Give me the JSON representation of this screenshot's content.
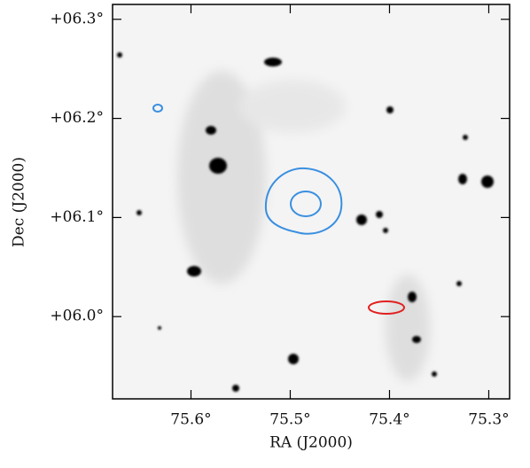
{
  "chart_data": {
    "type": "image",
    "xlabel": "RA (J2000)",
    "ylabel": "Dec (J2000)",
    "xlim": [
      75.679,
      75.279
    ],
    "ylim": [
      5.917,
      6.315
    ],
    "xticks": [
      {
        "value": 75.6,
        "label": "75.6°"
      },
      {
        "value": 75.5,
        "label": "75.5°"
      },
      {
        "value": 75.4,
        "label": "75.4°"
      },
      {
        "value": 75.3,
        "label": "75.3°"
      }
    ],
    "yticks": [
      {
        "value": 6.0,
        "label": "+06.0°"
      },
      {
        "value": 6.1,
        "label": "+06.1°"
      },
      {
        "value": 6.2,
        "label": "+06.2°"
      },
      {
        "value": 6.3,
        "label": "+06.3°"
      }
    ]
  }
}
